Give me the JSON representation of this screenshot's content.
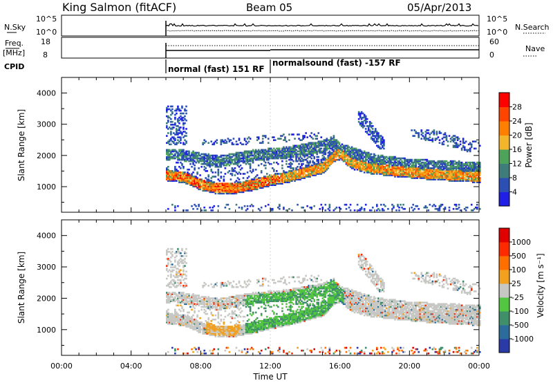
{
  "header": {
    "title": "King Salmon (fitACF)",
    "beam": "Beam 05",
    "date": "05/Apr/2013"
  },
  "panel_labels": {
    "nsky": "N.Sky",
    "freq_line1": "Freq.",
    "freq_line2": "[MHz]",
    "cpid": "CPID",
    "nsearch": "N.Search",
    "nave": "Nave",
    "nsky_tick_hi": "10^5",
    "nsky_tick_lo": "10^0",
    "nsearch_tick_hi": "10^5",
    "nsearch_tick_lo": "10^0",
    "freq_tick_hi": "18",
    "freq_tick_lo": "8",
    "nave_tick_hi": "60",
    "nave_tick_lo": "0"
  },
  "cpid_segments": [
    {
      "label": "normal (fast) 151 RF",
      "start_hr": 6.0,
      "end_hr": 12.0
    },
    {
      "label": "normalsound (fast) -157 RF",
      "start_hr": 12.0,
      "end_hr": 24.0
    }
  ],
  "chart_data": [
    {
      "type": "heatmap",
      "panel": "power",
      "ylabel": "Slant Range [km]",
      "xlabel": "",
      "x_range_hr": [
        0,
        24
      ],
      "ylim": [
        180,
        4500
      ],
      "y_ticks": [
        1000,
        2000,
        3000,
        4000
      ],
      "colorbar_label": "Power [dB]",
      "colorbar_ticks": [
        "4",
        "8",
        "12",
        "16",
        "20",
        "24",
        "28"
      ],
      "colorbar_colors": [
        "#1f1fe6",
        "#2c4fb3",
        "#3f7d7a",
        "#4ea35a",
        "#f2b52b",
        "#ff8000",
        "#ff4400",
        "#ff0000"
      ],
      "data_start_hr": 6.0
    },
    {
      "type": "heatmap",
      "panel": "velocity",
      "ylabel": "Slant Range [km]",
      "xlabel": "Time UT",
      "x_range_hr": [
        0,
        24
      ],
      "x_tick_labels": [
        "00:00",
        "04:00",
        "08:00",
        "12:00",
        "16:00",
        "20:00",
        "00:00"
      ],
      "ylim": [
        180,
        4500
      ],
      "y_ticks": [
        1000,
        2000,
        3000,
        4000
      ],
      "colorbar_label": "Velocity [m s⁻¹]",
      "colorbar_ticks": [
        "1000",
        "500",
        "100",
        "25",
        "-25",
        "-100",
        "-500",
        "-1000"
      ],
      "colorbar_colors": [
        "#2a3aa6",
        "#2c6c9c",
        "#3f8f6a",
        "#52c640",
        "#c7c7c4",
        "#f1a020",
        "#ff6f00",
        "#ff2a00",
        "#e10000"
      ],
      "data_start_hr": 6.0
    }
  ]
}
